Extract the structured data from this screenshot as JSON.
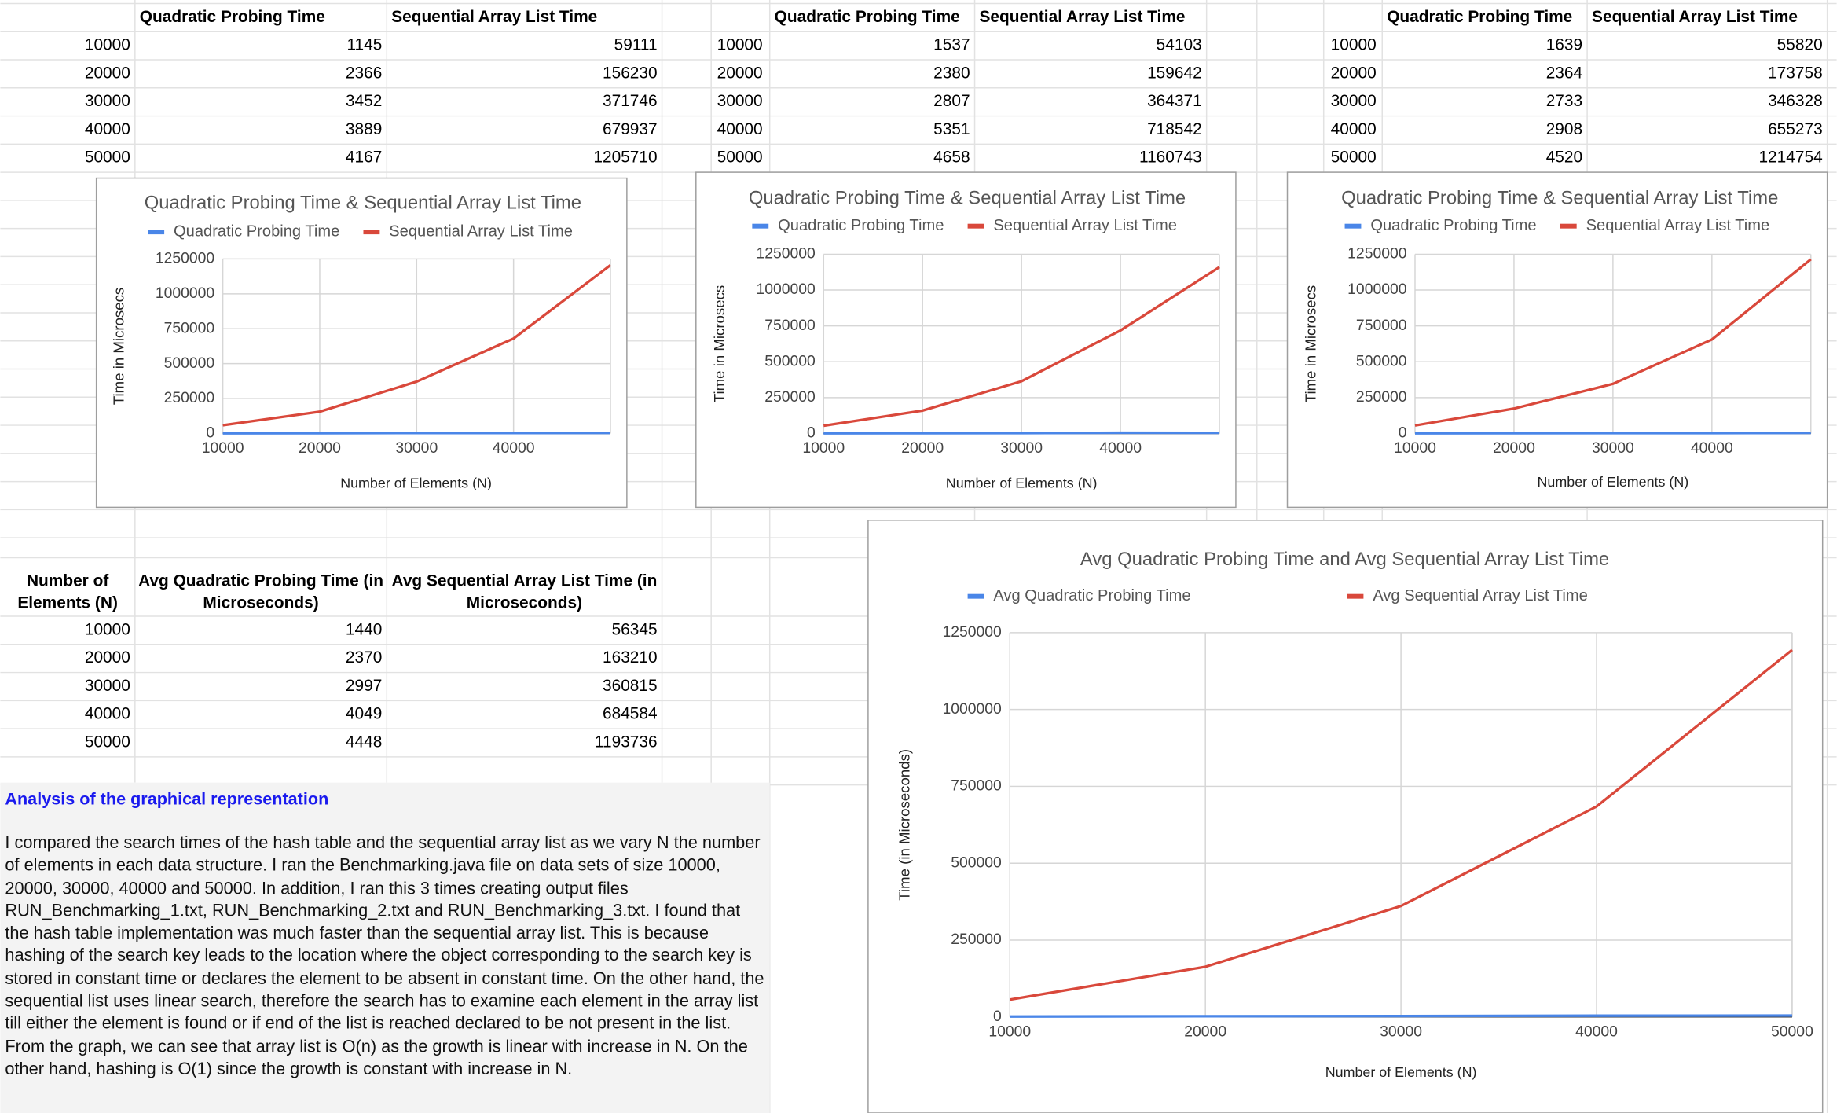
{
  "tables": [
    {
      "columns": [
        "Quadratic Probing Time",
        "Sequential Array List Time"
      ],
      "rows": [
        [
          10000,
          1145,
          59111
        ],
        [
          20000,
          2366,
          156230
        ],
        [
          30000,
          3452,
          371746
        ],
        [
          40000,
          3889,
          679937
        ],
        [
          50000,
          4167,
          1205710
        ]
      ]
    },
    {
      "columns": [
        "Quadratic Probing Time",
        "Sequential Array List Time"
      ],
      "rows": [
        [
          10000,
          1537,
          54103
        ],
        [
          20000,
          2380,
          159642
        ],
        [
          30000,
          2807,
          364371
        ],
        [
          40000,
          5351,
          718542
        ],
        [
          50000,
          4658,
          1160743
        ]
      ]
    },
    {
      "columns": [
        "Quadratic Probing Time",
        "Sequential Array List Time"
      ],
      "rows": [
        [
          10000,
          1639,
          55820
        ],
        [
          20000,
          2364,
          173758
        ],
        [
          30000,
          2733,
          346328
        ],
        [
          40000,
          2908,
          655273
        ],
        [
          50000,
          4520,
          1214754
        ]
      ]
    }
  ],
  "avg_table": {
    "columns": [
      "Number of Elements (N)",
      "Avg Quadratic Probing Time (in Microseconds)",
      "Avg Sequential Array List Time (in Microseconds)"
    ],
    "rows": [
      [
        10000,
        1440,
        56345
      ],
      [
        20000,
        2370,
        163210
      ],
      [
        30000,
        2997,
        360815
      ],
      [
        40000,
        4049,
        684584
      ],
      [
        50000,
        4448,
        1193736
      ]
    ]
  },
  "analysis": {
    "title": "Analysis of the graphical representation",
    "text": "I compared the search times of the hash table and the sequential array list as we vary N the number of elements in each data structure. I ran the Benchmarking.java file on data sets of size 10000, 20000, 30000, 40000 and 50000. In addition, I ran this 3 times creating output files RUN_Benchmarking_1.txt, RUN_Benchmarking_2.txt and RUN_Benchmarking_3.txt. I found that the hash table implementation was much faster than the sequential array list. This is because hashing of the search key leads to the location where the object corresponding to the search key is stored in constant time or declares the element to be absent in constant time. On the other hand, the sequential list uses linear search, therefore the search has to examine each element in the array list till either the element is found or if end of the list is reached declared to be not present in the list. From the graph, we can see that array list is O(n) as the growth is linear with increase in N. On the other hand, hashing is O(1) since the growth is constant with increase in N."
  },
  "chart_data": [
    {
      "type": "line",
      "title": "Quadratic Probing Time & Sequential Array List Time",
      "x_label": "Number of Elements (N)",
      "y_label": "Time in Microsecs",
      "x": [
        10000,
        20000,
        30000,
        40000,
        50000
      ],
      "xlim": [
        10000,
        50000
      ],
      "xticks": [
        10000,
        20000,
        30000,
        40000
      ],
      "ylim": [
        0,
        1250000
      ],
      "yticks": [
        0,
        250000,
        500000,
        750000,
        1000000,
        1250000
      ],
      "grid": true,
      "series": [
        {
          "name": "Quadratic Probing Time",
          "color": "#4a86e8",
          "values": [
            1145,
            2366,
            3452,
            3889,
            4167
          ]
        },
        {
          "name": "Sequential Array List Time",
          "color": "#d9483b",
          "values": [
            59111,
            156230,
            371746,
            679937,
            1205710
          ]
        }
      ]
    },
    {
      "type": "line",
      "title": "Quadratic Probing Time & Sequential Array List Time",
      "x_label": "Number of Elements (N)",
      "y_label": "Time in Microsecs",
      "x": [
        10000,
        20000,
        30000,
        40000,
        50000
      ],
      "xlim": [
        10000,
        50000
      ],
      "xticks": [
        10000,
        20000,
        30000,
        40000
      ],
      "ylim": [
        0,
        1250000
      ],
      "yticks": [
        0,
        250000,
        500000,
        750000,
        1000000,
        1250000
      ],
      "grid": true,
      "series": [
        {
          "name": "Quadratic Probing Time",
          "color": "#4a86e8",
          "values": [
            1537,
            2380,
            2807,
            5351,
            4658
          ]
        },
        {
          "name": "Sequential Array List Time",
          "color": "#d9483b",
          "values": [
            54103,
            159642,
            364371,
            718542,
            1160743
          ]
        }
      ]
    },
    {
      "type": "line",
      "title": "Quadratic Probing Time & Sequential Array List Time",
      "x_label": "Number of Elements (N)",
      "y_label": "Time in Microsecs",
      "x": [
        10000,
        20000,
        30000,
        40000,
        50000
      ],
      "xlim": [
        10000,
        50000
      ],
      "xticks": [
        10000,
        20000,
        30000,
        40000
      ],
      "ylim": [
        0,
        1250000
      ],
      "yticks": [
        0,
        250000,
        500000,
        750000,
        1000000,
        1250000
      ],
      "grid": true,
      "series": [
        {
          "name": "Quadratic Probing Time",
          "color": "#4a86e8",
          "values": [
            1639,
            2364,
            2733,
            2908,
            4520
          ]
        },
        {
          "name": "Sequential Array List Time",
          "color": "#d9483b",
          "values": [
            55820,
            173758,
            346328,
            655273,
            1214754
          ]
        }
      ]
    },
    {
      "type": "line",
      "title": "Avg Quadratic Probing Time and Avg Sequential Array List Time",
      "x_label": "Number of Elements (N)",
      "y_label": "Time (in Microseconds)",
      "x": [
        10000,
        20000,
        30000,
        40000,
        50000
      ],
      "xlim": [
        10000,
        50000
      ],
      "xticks": [
        10000,
        20000,
        30000,
        40000,
        50000
      ],
      "ylim": [
        0,
        1250000
      ],
      "yticks": [
        0,
        250000,
        500000,
        750000,
        1000000,
        1250000
      ],
      "grid": true,
      "series": [
        {
          "name": "Avg Quadratic Probing Time",
          "color": "#4a86e8",
          "values": [
            1440,
            2370,
            2997,
            4049,
            4448
          ]
        },
        {
          "name": "Avg Sequential Array List Time",
          "color": "#d9483b",
          "values": [
            56345,
            163210,
            360815,
            684584,
            1193736
          ]
        }
      ]
    }
  ]
}
